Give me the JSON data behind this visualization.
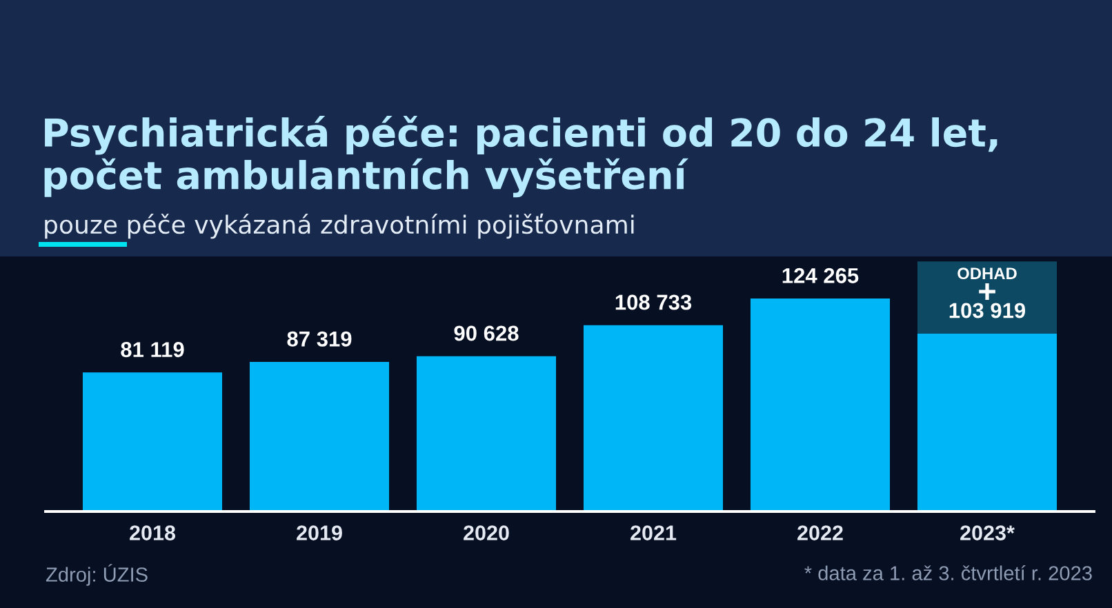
{
  "chart_data": {
    "type": "bar",
    "title": "Psychiatrická péče: pacienti od 20 do 24 let,\npočet ambulantních vyšetření",
    "subtitle": "pouze péče vykázaná zdravotními pojišťovnami",
    "categories": [
      "2018",
      "2019",
      "2020",
      "2021",
      "2022",
      "2023*"
    ],
    "stacked": true,
    "series": [
      {
        "color": "#00b6f7",
        "values": [
          81119,
          87319,
          90628,
          108733,
          124265,
          103919
        ],
        "value_labels": [
          "81 119",
          "87 319",
          "90 628",
          "108 733",
          "124 265",
          "103 919"
        ]
      },
      {
        "name": "ODHAD",
        "color": "#0d4962",
        "values": [
          null,
          null,
          null,
          null,
          null,
          42000
        ]
      }
    ],
    "tick_labels": "x",
    "annotations": [
      "+",
      "Zdroj: ÚZIS",
      "* data za 1. až 3. čtvrtletí r. 2023"
    ]
  }
}
